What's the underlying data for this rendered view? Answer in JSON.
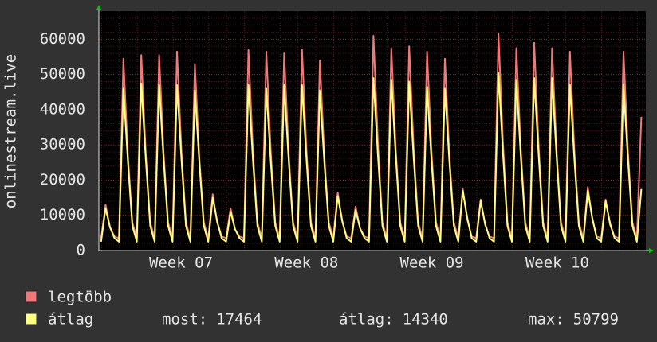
{
  "chart_data": {
    "type": "line",
    "ylabel": "onlinestream.live",
    "xlabels": [
      "Week 07",
      "Week 08",
      "Week 09",
      "Week 10"
    ],
    "ylim": [
      0,
      68000
    ],
    "yticks": [
      0,
      10000,
      20000,
      30000,
      40000,
      50000,
      60000
    ],
    "grid": true,
    "series": [
      {
        "name": "legtöbb",
        "color": "#f07878",
        "values": [
          3500,
          13000,
          6500,
          4000,
          3500,
          54500,
          27250,
          8000,
          3500,
          55500,
          27750,
          8000,
          3500,
          55500,
          27750,
          8000,
          3500,
          56500,
          28250,
          8000,
          3500,
          53000,
          26500,
          8000,
          3500,
          16000,
          8000,
          4000,
          3500,
          12000,
          6000,
          4000,
          3500,
          57000,
          28500,
          8000,
          3500,
          56500,
          28250,
          8000,
          3500,
          56000,
          28000,
          8000,
          3500,
          57000,
          28500,
          8000,
          3500,
          54000,
          27000,
          8000,
          3500,
          16500,
          8250,
          4000,
          3500,
          12500,
          6250,
          4000,
          3500,
          61000,
          30500,
          8000,
          3500,
          57500,
          28750,
          8000,
          3500,
          58000,
          29000,
          8000,
          3500,
          56500,
          28250,
          8000,
          3500,
          54500,
          27250,
          8000,
          3500,
          17500,
          8750,
          4000,
          3500,
          14500,
          7250,
          4000,
          3500,
          61500,
          30750,
          8000,
          3500,
          57500,
          28750,
          8000,
          3500,
          59000,
          29500,
          8000,
          3500,
          57500,
          28750,
          8000,
          3500,
          56500,
          28250,
          8000,
          3500,
          18000,
          9000,
          4000,
          3500,
          14500,
          7250,
          4000,
          3500,
          56500,
          28250,
          8000,
          3500,
          38000
        ]
      },
      {
        "name": "átlag",
        "color": "#ffff80",
        "values": [
          2500,
          12000,
          6600,
          3500,
          2500,
          46000,
          25300,
          7000,
          2500,
          47500,
          26100,
          7000,
          2500,
          47000,
          25850,
          7000,
          2500,
          47000,
          25850,
          7000,
          2500,
          45500,
          25000,
          7000,
          2500,
          15000,
          8250,
          3500,
          2500,
          11000,
          6050,
          3500,
          2500,
          47000,
          25850,
          7000,
          2500,
          46000,
          25300,
          7000,
          2500,
          47000,
          25850,
          7000,
          2500,
          47000,
          25850,
          7000,
          2500,
          45500,
          25000,
          7000,
          2500,
          15500,
          8500,
          3500,
          2500,
          11500,
          6300,
          3500,
          2500,
          49000,
          26950,
          7000,
          2500,
          48500,
          26700,
          7000,
          2500,
          48000,
          26400,
          7000,
          2500,
          46500,
          25600,
          7000,
          2500,
          46000,
          25300,
          7000,
          2500,
          17000,
          9350,
          3500,
          2500,
          14000,
          7700,
          3500,
          2500,
          50500,
          27800,
          7000,
          2500,
          48500,
          26700,
          7000,
          2500,
          49000,
          26950,
          7000,
          2500,
          49000,
          26950,
          7000,
          2500,
          47000,
          25850,
          7000,
          2500,
          17000,
          9350,
          3500,
          2500,
          14000,
          7700,
          3500,
          2500,
          47000,
          25850,
          7000,
          2500,
          17464
        ]
      }
    ],
    "stats": [
      {
        "label": "most:",
        "value": 17464
      },
      {
        "label": "átlag:",
        "value": 14340
      },
      {
        "label": "max:",
        "value": 50799
      }
    ]
  }
}
